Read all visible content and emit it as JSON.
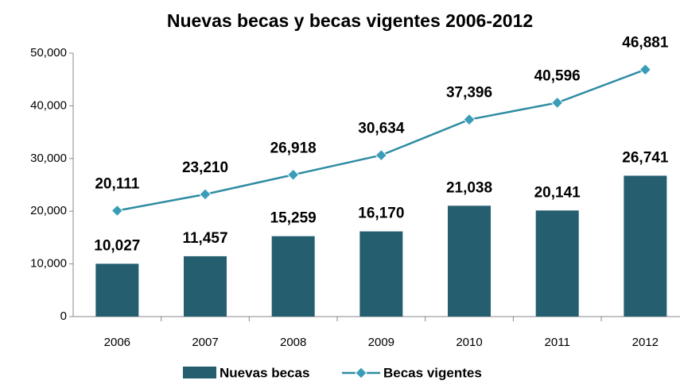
{
  "chart_data": {
    "type": "bar_line",
    "title": "Nuevas becas y becas vigentes 2006-2012",
    "categories": [
      "2006",
      "2007",
      "2008",
      "2009",
      "2010",
      "2011",
      "2012"
    ],
    "series": [
      {
        "name": "Nuevas becas",
        "type": "bar",
        "color": "#255e6e",
        "values": [
          10027,
          11457,
          15259,
          16170,
          21038,
          20141,
          26741
        ],
        "value_labels": [
          "10,027",
          "11,457",
          "15,259",
          "16,170",
          "21,038",
          "20,141",
          "26,741"
        ]
      },
      {
        "name": "Becas vigentes",
        "type": "line",
        "color": "#2f8ca3",
        "values": [
          20111,
          23210,
          26918,
          30634,
          37396,
          40596,
          46881
        ],
        "value_labels": [
          "20,111",
          "23,210",
          "26,918",
          "30,634",
          "37,396",
          "40,596",
          "46,881"
        ]
      }
    ],
    "ylim": [
      0,
      50000
    ],
    "yticks": [
      0,
      {
        "value": 10000,
        "label": "10,000"
      },
      {
        "value": 20000,
        "label": "20,000"
      },
      {
        "value": 30000,
        "label": "30,000"
      },
      {
        "value": 40000,
        "label": "40,000"
      },
      {
        "value": 50000,
        "label": "50,000"
      }
    ],
    "legend": "bottom"
  }
}
